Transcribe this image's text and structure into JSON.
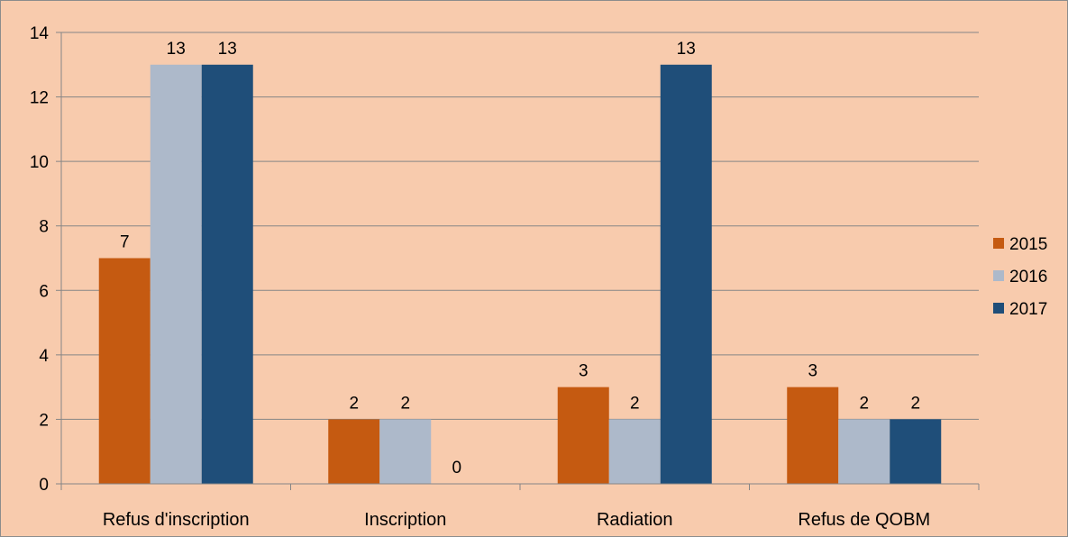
{
  "chart_data": {
    "type": "bar",
    "title": "",
    "xlabel": "",
    "ylabel": "",
    "categories": [
      "Refus d'inscription",
      "Inscription",
      "Radiation",
      "Refus de QOBM"
    ],
    "series": [
      {
        "name": "2015",
        "values": [
          7,
          2,
          3,
          3
        ],
        "color": "#c55a11"
      },
      {
        "name": "2016",
        "values": [
          13,
          2,
          2,
          2
        ],
        "color": "#adb9ca"
      },
      {
        "name": "2017",
        "values": [
          13,
          0,
          13,
          2
        ],
        "color": "#1f4e79"
      }
    ],
    "ylim": [
      0,
      14
    ],
    "yticks": [
      0,
      2,
      4,
      6,
      8,
      10,
      12,
      14
    ],
    "grid": true,
    "legend_position": "right",
    "data_labels": true,
    "background_color": "#f8cbad",
    "gridline_color": "#868686"
  }
}
